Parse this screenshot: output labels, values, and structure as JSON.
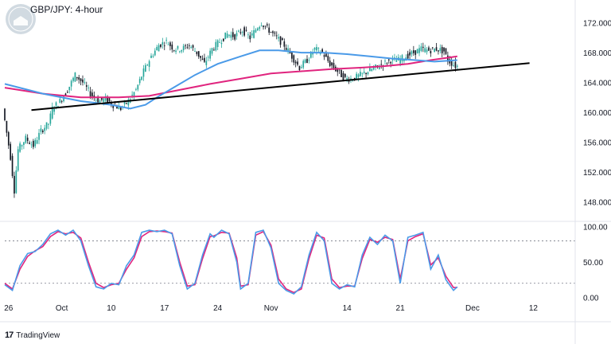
{
  "chart_title": "GBP/JPY: 4-hour",
  "footer": {
    "brand_glyph": "17",
    "brand_name": "TradingView"
  },
  "colors": {
    "candle_up": "#26a69a",
    "candle_down": "#131722",
    "ma_fast": "#4a9ae8",
    "ma_slow": "#e0247e",
    "trendline": "#000000",
    "stoch_k": "#4a9ae8",
    "stoch_d": "#e0247e",
    "grid_dotted": "#787b86"
  },
  "chart_data": [
    {
      "type": "candlestick",
      "title": "GBP/JPY: 4-hour",
      "x_ticks": [
        "26",
        "Oct",
        "10",
        "17",
        "24",
        "Nov",
        "14",
        "21",
        "Dec",
        "12"
      ],
      "y_ticks": [
        "172.000",
        "168.000",
        "164.000",
        "160.000",
        "156.000",
        "152.000",
        "148.000"
      ],
      "ylim": [
        146.0,
        174.0
      ],
      "grid": false,
      "x_index_range": [
        0,
        150
      ],
      "x_tick_index": [
        1,
        15,
        28,
        42,
        56,
        70,
        90,
        104,
        123,
        139
      ],
      "price_path_points": [
        [
          0,
          160.5
        ],
        [
          2,
          154.0
        ],
        [
          3,
          149.5
        ],
        [
          4,
          155.0
        ],
        [
          6,
          156.5
        ],
        [
          8,
          155.5
        ],
        [
          10,
          157.5
        ],
        [
          12,
          158.5
        ],
        [
          13,
          160.5
        ],
        [
          15,
          161.5
        ],
        [
          17,
          163.0
        ],
        [
          19,
          165.0
        ],
        [
          21,
          164.0
        ],
        [
          23,
          162.5
        ],
        [
          25,
          161.5
        ],
        [
          27,
          161.8
        ],
        [
          29,
          161.0
        ],
        [
          31,
          160.5
        ],
        [
          33,
          161.5
        ],
        [
          35,
          163.0
        ],
        [
          37,
          165.5
        ],
        [
          39,
          167.5
        ],
        [
          41,
          169.0
        ],
        [
          43,
          169.5
        ],
        [
          45,
          168.5
        ],
        [
          47,
          168.5
        ],
        [
          49,
          169.0
        ],
        [
          51,
          168.0
        ],
        [
          53,
          166.5
        ],
        [
          55,
          168.5
        ],
        [
          57,
          169.5
        ],
        [
          59,
          170.5
        ],
        [
          61,
          170.2
        ],
        [
          63,
          171.0
        ],
        [
          65,
          170.0
        ],
        [
          67,
          171.5
        ],
        [
          68,
          172.0
        ],
        [
          70,
          171.0
        ],
        [
          72,
          170.0
        ],
        [
          74,
          169.0
        ],
        [
          76,
          167.5
        ],
        [
          78,
          166.0
        ],
        [
          80,
          167.0
        ],
        [
          82,
          168.5
        ],
        [
          84,
          168.0
        ],
        [
          86,
          166.5
        ],
        [
          88,
          165.5
        ],
        [
          90,
          164.5
        ],
        [
          92,
          164.5
        ],
        [
          94,
          165.0
        ],
        [
          96,
          165.5
        ],
        [
          98,
          166.0
        ],
        [
          100,
          166.5
        ],
        [
          102,
          167.0
        ],
        [
          104,
          167.0
        ],
        [
          106,
          167.5
        ],
        [
          108,
          168.0
        ],
        [
          110,
          168.5
        ],
        [
          112,
          168.3
        ],
        [
          114,
          168.5
        ],
        [
          116,
          168.2
        ],
        [
          117,
          167.0
        ],
        [
          119,
          166.2
        ]
      ],
      "series": [
        {
          "style": "line",
          "points": [
            [
              0,
              163.8
            ],
            [
              10,
              162.5
            ],
            [
              20,
              161.5
            ],
            [
              28,
              161.0
            ],
            [
              33,
              160.5
            ],
            [
              37,
              161.0
            ],
            [
              40,
              162.0
            ],
            [
              45,
              163.5
            ],
            [
              50,
              165.0
            ],
            [
              56,
              166.5
            ],
            [
              62,
              167.5
            ],
            [
              67,
              168.3
            ],
            [
              72,
              168.3
            ],
            [
              78,
              168.0
            ],
            [
              84,
              168.0
            ],
            [
              90,
              167.8
            ],
            [
              96,
              167.5
            ],
            [
              102,
              167.2
            ],
            [
              108,
              167.0
            ],
            [
              113,
              166.8
            ],
            [
              119,
              167.0
            ]
          ]
        },
        {
          "style": "line",
          "points": [
            [
              0,
              163.3
            ],
            [
              10,
              162.5
            ],
            [
              20,
              162.0
            ],
            [
              30,
              162.0
            ],
            [
              38,
              162.2
            ],
            [
              46,
              163.0
            ],
            [
              54,
              163.8
            ],
            [
              62,
              164.5
            ],
            [
              70,
              165.2
            ],
            [
              78,
              165.5
            ],
            [
              86,
              165.8
            ],
            [
              94,
              166.0
            ],
            [
              100,
              166.2
            ],
            [
              106,
              166.5
            ],
            [
              112,
              167.0
            ],
            [
              119,
              167.5
            ]
          ]
        },
        {
          "style": "trendline",
          "points": [
            [
              7,
              160.3
            ],
            [
              138,
              166.6
            ]
          ]
        }
      ]
    },
    {
      "type": "line",
      "title": "",
      "y_ticks": [
        "100.00",
        "50.00",
        "0.00"
      ],
      "ylim": [
        -5,
        103
      ],
      "reference_lines": [
        80,
        20
      ],
      "series": [
        {
          "points": [
            [
              0,
              18
            ],
            [
              2,
              10
            ],
            [
              4,
              45
            ],
            [
              6,
              62
            ],
            [
              8,
              65
            ],
            [
              10,
              75
            ],
            [
              12,
              90
            ],
            [
              14,
              95
            ],
            [
              16,
              88
            ],
            [
              18,
              95
            ],
            [
              20,
              80
            ],
            [
              22,
              45
            ],
            [
              24,
              15
            ],
            [
              26,
              12
            ],
            [
              28,
              20
            ],
            [
              30,
              18
            ],
            [
              32,
              45
            ],
            [
              34,
              60
            ],
            [
              36,
              92
            ],
            [
              38,
              95
            ],
            [
              40,
              93
            ],
            [
              42,
              95
            ],
            [
              44,
              90
            ],
            [
              46,
              45
            ],
            [
              48,
              12
            ],
            [
              50,
              20
            ],
            [
              52,
              60
            ],
            [
              54,
              90
            ],
            [
              55,
              85
            ],
            [
              57,
              95
            ],
            [
              59,
              90
            ],
            [
              61,
              50
            ],
            [
              62,
              12
            ],
            [
              64,
              20
            ],
            [
              66,
              92
            ],
            [
              68,
              95
            ],
            [
              70,
              70
            ],
            [
              72,
              20
            ],
            [
              74,
              10
            ],
            [
              76,
              5
            ],
            [
              78,
              15
            ],
            [
              80,
              60
            ],
            [
              82,
              92
            ],
            [
              84,
              80
            ],
            [
              86,
              20
            ],
            [
              88,
              12
            ],
            [
              90,
              18
            ],
            [
              92,
              15
            ],
            [
              94,
              60
            ],
            [
              96,
              85
            ],
            [
              98,
              75
            ],
            [
              100,
              88
            ],
            [
              102,
              80
            ],
            [
              104,
              20
            ],
            [
              106,
              85
            ],
            [
              108,
              88
            ],
            [
              110,
              92
            ],
            [
              112,
              40
            ],
            [
              114,
              60
            ],
            [
              116,
              25
            ],
            [
              118,
              10
            ],
            [
              119,
              15
            ]
          ]
        },
        {
          "points": [
            [
              0,
              20
            ],
            [
              2,
              12
            ],
            [
              4,
              40
            ],
            [
              6,
              58
            ],
            [
              8,
              66
            ],
            [
              10,
              72
            ],
            [
              12,
              86
            ],
            [
              14,
              93
            ],
            [
              16,
              90
            ],
            [
              18,
              92
            ],
            [
              20,
              84
            ],
            [
              22,
              50
            ],
            [
              24,
              20
            ],
            [
              26,
              14
            ],
            [
              28,
              18
            ],
            [
              30,
              20
            ],
            [
              32,
              40
            ],
            [
              34,
              56
            ],
            [
              36,
              86
            ],
            [
              38,
              93
            ],
            [
              40,
              94
            ],
            [
              42,
              93
            ],
            [
              44,
              91
            ],
            [
              46,
              50
            ],
            [
              48,
              16
            ],
            [
              50,
              18
            ],
            [
              52,
              55
            ],
            [
              54,
              86
            ],
            [
              55,
              87
            ],
            [
              57,
              92
            ],
            [
              59,
              91
            ],
            [
              61,
              56
            ],
            [
              62,
              16
            ],
            [
              64,
              18
            ],
            [
              66,
              88
            ],
            [
              68,
              93
            ],
            [
              70,
              74
            ],
            [
              72,
              26
            ],
            [
              74,
              12
            ],
            [
              76,
              7
            ],
            [
              78,
              12
            ],
            [
              80,
              55
            ],
            [
              82,
              88
            ],
            [
              84,
              84
            ],
            [
              86,
              26
            ],
            [
              88,
              14
            ],
            [
              90,
              16
            ],
            [
              92,
              16
            ],
            [
              94,
              55
            ],
            [
              96,
              82
            ],
            [
              98,
              78
            ],
            [
              100,
              85
            ],
            [
              102,
              82
            ],
            [
              104,
              26
            ],
            [
              106,
              80
            ],
            [
              108,
              86
            ],
            [
              110,
              90
            ],
            [
              112,
              46
            ],
            [
              114,
              56
            ],
            [
              116,
              30
            ],
            [
              118,
              14
            ],
            [
              119,
              14
            ]
          ]
        }
      ]
    }
  ]
}
